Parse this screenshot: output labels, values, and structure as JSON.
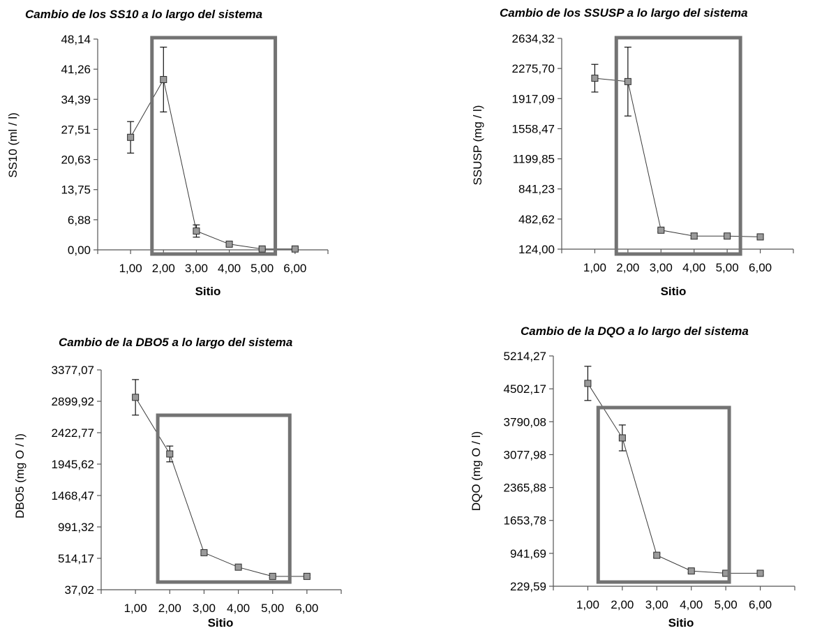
{
  "chart_data": [
    {
      "type": "line",
      "title": "Cambio de los SS10 a lo largo del sistema",
      "xlabel": "Sitio",
      "ylabel": "SS10 (ml / l)",
      "x_ticks": [
        "1,00",
        "2,00",
        "3,00",
        "4,00",
        "5,00",
        "6,00"
      ],
      "y_ticks": [
        "0,00",
        "6,88",
        "13,75",
        "20,63",
        "27,51",
        "34,39",
        "41,26",
        "48,14"
      ],
      "ylim": [
        0.0,
        48.14
      ],
      "xlim": [
        0.0,
        7.0
      ],
      "highlight_box": {
        "x_from": 1.65,
        "x_to": 5.4
      },
      "series": [
        {
          "x": [
            1,
            2,
            3,
            4,
            5,
            6
          ],
          "y": [
            25.7,
            38.9,
            4.3,
            1.3,
            0.2,
            0.2
          ],
          "err": [
            3.6,
            7.4,
            1.4,
            0.5,
            0.3,
            0.3
          ]
        }
      ]
    },
    {
      "type": "line",
      "title": "Cambio de los SSUSP a lo largo del sistema",
      "xlabel": "Sitio",
      "ylabel": "SSUSP (mg / l)",
      "x_ticks": [
        "1,00",
        "2,00",
        "3,00",
        "4,00",
        "5,00",
        "6,00"
      ],
      "y_ticks": [
        "124,00",
        "482,62",
        "841,23",
        "1199,85",
        "1558,47",
        "1917,09",
        "2275,70",
        "2634,32"
      ],
      "ylim": [
        124.0,
        2634.32
      ],
      "xlim": [
        0.0,
        7.0
      ],
      "highlight_box": {
        "x_from": 1.65,
        "x_to": 5.4
      },
      "series": [
        {
          "x": [
            1,
            2,
            3,
            4,
            5,
            6
          ],
          "y": [
            2160,
            2120,
            350,
            280,
            280,
            270
          ],
          "err": [
            165,
            410,
            18,
            35,
            22,
            22
          ]
        }
      ]
    },
    {
      "type": "line",
      "title": "Cambio de la DBO5 a lo largo del sistema",
      "xlabel": "Sitio",
      "ylabel": "DBO5 (mg O / l)",
      "x_ticks": [
        "1,00",
        "2,00",
        "3,00",
        "4,00",
        "5,00",
        "6,00"
      ],
      "y_ticks": [
        "37,02",
        "514,17",
        "991,32",
        "1468,47",
        "1945,62",
        "2422,77",
        "2899,92",
        "3377,07"
      ],
      "ylim": [
        37.02,
        3377.07
      ],
      "xlim": [
        0.0,
        7.0
      ],
      "highlight_box": {
        "x_from": 1.65,
        "x_to": 5.5
      },
      "series": [
        {
          "x": [
            1,
            2,
            3,
            4,
            5,
            6
          ],
          "y": [
            2960,
            2100,
            600,
            380,
            240,
            240
          ],
          "err": [
            270,
            120,
            20,
            20,
            20,
            20
          ]
        }
      ]
    },
    {
      "type": "line",
      "title": "Cambio de la DQO a lo largo del sistema",
      "xlabel": "Sitio",
      "ylabel": "DQO (mg O / l)",
      "x_ticks": [
        "1,00",
        "2,00",
        "3,00",
        "4,00",
        "5,00",
        "6,00"
      ],
      "y_ticks": [
        "229,59",
        "941,69",
        "1653,78",
        "2365,88",
        "3077,98",
        "3790,08",
        "4502,17",
        "5214,27"
      ],
      "ylim": [
        229.59,
        5214.27
      ],
      "xlim": [
        0.0,
        7.0
      ],
      "highlight_box": {
        "x_from": 1.3,
        "x_to": 5.1
      },
      "series": [
        {
          "x": [
            1,
            2,
            3,
            4,
            5,
            6
          ],
          "y": [
            4620,
            3440,
            900,
            560,
            510,
            510
          ],
          "err": [
            370,
            280,
            40,
            40,
            30,
            30
          ]
        }
      ]
    }
  ],
  "colors": {
    "highlight_box": "#737373",
    "marker_fill": "#9a9a9a",
    "marker_stroke": "#2b2b2b",
    "line": "#3a3a3a",
    "axis": "#555555"
  }
}
